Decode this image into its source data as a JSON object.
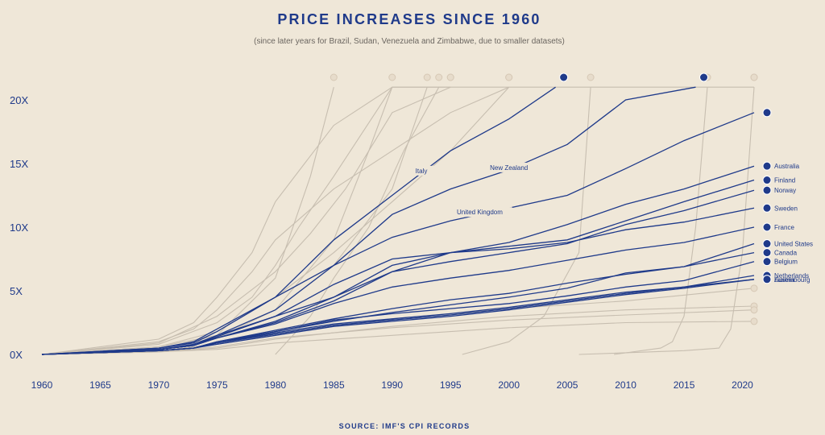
{
  "chart_data": {
    "type": "line",
    "title": "PRICE INCREASES SINCE 1960",
    "subtitle": "(since later years for Brazil, Sudan, Venezuela and Zimbabwe, due to smaller datasets)",
    "source": "SOURCE: IMF'S CPI RECORDS",
    "xlim": [
      1960,
      2021
    ],
    "ylim": [
      0,
      21
    ],
    "x_ticks": [
      "1960",
      "1965",
      "1970",
      "1975",
      "1980",
      "1985",
      "1990",
      "1995",
      "2000",
      "2005",
      "2010",
      "2015",
      "2020"
    ],
    "y_ticks": [
      "0X",
      "5X",
      "10X",
      "15X",
      "20X"
    ],
    "colors": {
      "highlight": "#1f3a8a",
      "faded": "#c7beb0",
      "background": "#efe7d8",
      "text": "#1f3a8a"
    },
    "inline_labels": [
      "Italy",
      "New Zealand",
      "United Kingdom"
    ],
    "series": [
      {
        "name": "United Kingdom",
        "highlight": true,
        "x": [
          1960,
          1970,
          1973,
          1975,
          1980,
          1985,
          1990,
          1995,
          2000,
          2005,
          2010,
          2015,
          2021
        ],
        "y": [
          0,
          0.5,
          1.0,
          2.0,
          4.5,
          7.0,
          9.2,
          10.5,
          11.5,
          12.5,
          14.6,
          16.8,
          19.0
        ]
      },
      {
        "name": "Italy",
        "highlight": true,
        "x": [
          1960,
          1970,
          1973,
          1975,
          1980,
          1985,
          1990,
          1995,
          2000,
          2004
        ],
        "y": [
          0,
          0.5,
          0.9,
          1.8,
          4.5,
          9.0,
          12.5,
          16.0,
          18.5,
          21.0
        ]
      },
      {
        "name": "New Zealand",
        "highlight": true,
        "x": [
          1960,
          1970,
          1973,
          1975,
          1980,
          1985,
          1990,
          1995,
          2000,
          2005,
          2010,
          2016
        ],
        "y": [
          0,
          0.4,
          0.8,
          1.5,
          3.5,
          7.0,
          11.0,
          13.0,
          14.5,
          16.5,
          20.0,
          21.0
        ]
      },
      {
        "name": "Australia",
        "highlight": true,
        "x": [
          1960,
          1970,
          1973,
          1975,
          1980,
          1985,
          1990,
          1995,
          2000,
          2005,
          2010,
          2015,
          2021
        ],
        "y": [
          0,
          0.4,
          0.7,
          1.4,
          3.0,
          4.5,
          7.0,
          8.0,
          8.8,
          10.2,
          11.8,
          13.0,
          14.8
        ]
      },
      {
        "name": "Finland",
        "highlight": true,
        "x": [
          1960,
          1970,
          1973,
          1975,
          1980,
          1985,
          1990,
          1995,
          2000,
          2005,
          2010,
          2015,
          2021
        ],
        "y": [
          0,
          0.4,
          0.7,
          1.5,
          3.0,
          5.5,
          7.5,
          8.0,
          8.5,
          9.0,
          10.5,
          12.0,
          13.7
        ]
      },
      {
        "name": "Norway",
        "highlight": true,
        "x": [
          1960,
          1970,
          1973,
          1975,
          1980,
          1985,
          1990,
          1995,
          2000,
          2005,
          2010,
          2015,
          2021
        ],
        "y": [
          0,
          0.4,
          0.7,
          1.3,
          2.6,
          4.5,
          6.5,
          7.3,
          8.0,
          8.7,
          10.2,
          11.3,
          12.9
        ]
      },
      {
        "name": "Sweden",
        "highlight": true,
        "x": [
          1960,
          1970,
          1973,
          1975,
          1980,
          1985,
          1990,
          1995,
          2000,
          2005,
          2010,
          2015,
          2021
        ],
        "y": [
          0,
          0.4,
          0.7,
          1.3,
          2.5,
          4.2,
          6.5,
          8.0,
          8.3,
          8.8,
          9.8,
          10.4,
          11.5
        ]
      },
      {
        "name": "France",
        "highlight": true,
        "x": [
          1960,
          1970,
          1973,
          1975,
          1980,
          1985,
          1990,
          1995,
          2000,
          2005,
          2010,
          2015,
          2021
        ],
        "y": [
          0,
          0.4,
          0.7,
          1.3,
          2.4,
          4.0,
          5.3,
          6.0,
          6.6,
          7.4,
          8.2,
          8.8,
          10.0
        ]
      },
      {
        "name": "United States",
        "highlight": true,
        "x": [
          1960,
          1970,
          1973,
          1975,
          1980,
          1985,
          1990,
          1995,
          2000,
          2005,
          2010,
          2015,
          2021
        ],
        "y": [
          0,
          0.3,
          0.5,
          0.9,
          1.8,
          2.6,
          3.3,
          3.9,
          4.5,
          5.2,
          6.4,
          6.9,
          8.7
        ]
      },
      {
        "name": "Canada",
        "highlight": true,
        "x": [
          1960,
          1970,
          1973,
          1975,
          1980,
          1985,
          1990,
          1995,
          2000,
          2005,
          2010,
          2015,
          2021
        ],
        "y": [
          0,
          0.3,
          0.5,
          1.0,
          1.9,
          2.8,
          3.6,
          4.3,
          4.8,
          5.6,
          6.3,
          6.9,
          8.0
        ]
      },
      {
        "name": "Belgium",
        "highlight": true,
        "x": [
          1960,
          1970,
          1973,
          1975,
          1980,
          1985,
          1990,
          1995,
          2000,
          2005,
          2010,
          2015,
          2021
        ],
        "y": [
          0,
          0.3,
          0.5,
          1.0,
          1.8,
          2.7,
          3.2,
          3.6,
          4.0,
          4.6,
          5.3,
          5.8,
          7.3
        ]
      },
      {
        "name": "Netherlands",
        "highlight": true,
        "x": [
          1960,
          1970,
          1973,
          1975,
          1980,
          1985,
          1990,
          1995,
          2000,
          2005,
          2010,
          2015,
          2021
        ],
        "y": [
          0,
          0.3,
          0.5,
          0.9,
          1.7,
          2.4,
          2.8,
          3.2,
          3.7,
          4.3,
          4.9,
          5.3,
          6.2
        ]
      },
      {
        "name": "Luxembourg",
        "highlight": true,
        "x": [
          1960,
          1970,
          1973,
          1975,
          1980,
          1985,
          1990,
          1995,
          2000,
          2005,
          2010,
          2015,
          2021
        ],
        "y": [
          0,
          0.3,
          0.5,
          0.9,
          1.6,
          2.3,
          2.7,
          3.1,
          3.6,
          4.2,
          4.8,
          5.3,
          5.9
        ]
      },
      {
        "name": "Austria",
        "highlight": true,
        "x": [
          1960,
          1970,
          1973,
          1975,
          1980,
          1985,
          1990,
          1995,
          2000,
          2005,
          2010,
          2015,
          2021
        ],
        "y": [
          0,
          0.3,
          0.5,
          0.8,
          1.5,
          2.2,
          2.6,
          3.0,
          3.5,
          4.1,
          4.7,
          5.2,
          5.9
        ]
      },
      {
        "highlight": false,
        "x": [
          1960,
          1970,
          1973,
          1975,
          1978,
          1980,
          1985,
          1990,
          1995,
          2000,
          2005,
          2010,
          2015,
          2021
        ],
        "y": [
          0,
          1.0,
          2.0,
          3.5,
          6.5,
          9.0,
          13.0,
          16.0,
          19.0,
          21.0,
          21.0,
          21.0,
          21.0,
          21.0
        ]
      },
      {
        "highlight": false,
        "x": [
          1960,
          1970,
          1973,
          1975,
          1978,
          1980,
          1985,
          1990,
          1995,
          2000
        ],
        "y": [
          0,
          1.2,
          2.5,
          4.5,
          8.0,
          12.0,
          18.0,
          21.0,
          21.0,
          21.0
        ]
      },
      {
        "highlight": false,
        "x": [
          1960,
          1970,
          1975,
          1978,
          1980,
          1982,
          1985,
          1990,
          1995
        ],
        "y": [
          0,
          0.8,
          2.5,
          4.5,
          7.0,
          10.0,
          14.0,
          21.0,
          21.0
        ]
      },
      {
        "highlight": false,
        "x": [
          1960,
          1970,
          1975,
          1980,
          1983,
          1986,
          1990,
          1995
        ],
        "y": [
          0,
          0.9,
          3.0,
          6.5,
          9.5,
          13.0,
          19.0,
          21.0
        ]
      },
      {
        "highlight": false,
        "x": [
          1960,
          1970,
          1975,
          1980,
          1985,
          1990,
          1995,
          2000
        ],
        "y": [
          0,
          0.6,
          1.8,
          4.5,
          8.0,
          12.0,
          16.0,
          21.0
        ]
      },
      {
        "highlight": false,
        "x": [
          1960,
          1970,
          1975,
          1980,
          1985,
          1988,
          1990
        ],
        "y": [
          0,
          0.6,
          1.5,
          3.5,
          9.0,
          16.0,
          21.0
        ]
      },
      {
        "highlight": false,
        "x": [
          1960,
          1970,
          1975,
          1980,
          1985,
          1990,
          1993
        ],
        "y": [
          0,
          0.5,
          1.3,
          3.5,
          7.0,
          13.0,
          21.0
        ]
      },
      {
        "highlight": false,
        "x": [
          1960,
          1970,
          1975,
          1980,
          1983,
          1985
        ],
        "y": [
          0,
          0.4,
          1.5,
          6.0,
          14.0,
          21.0
        ]
      },
      {
        "highlight": false,
        "x": [
          1980,
          1983,
          1985,
          1988,
          1991,
          1994
        ],
        "y": [
          0,
          3.0,
          6.0,
          10.0,
          16.0,
          21.0
        ]
      },
      {
        "highlight": false,
        "x": [
          1996,
          2000,
          2003,
          2006,
          2007
        ],
        "y": [
          0,
          1.0,
          3.0,
          8.0,
          21.0
        ]
      },
      {
        "highlight": false,
        "x": [
          2009,
          2013,
          2014,
          2015,
          2016,
          2017
        ],
        "y": [
          0,
          0.5,
          1.0,
          3.0,
          10.0,
          21.0
        ]
      },
      {
        "highlight": false,
        "x": [
          2006,
          2015,
          2018,
          2019,
          2020,
          2021
        ],
        "y": [
          0,
          0.3,
          0.5,
          2.0,
          8.0,
          21.0
        ]
      },
      {
        "highlight": false,
        "x": [
          1960,
          1970,
          1975,
          1980,
          1990,
          2000,
          2010,
          2021
        ],
        "y": [
          0,
          0.3,
          0.8,
          1.6,
          2.8,
          3.6,
          4.2,
          5.2
        ]
      },
      {
        "highlight": false,
        "x": [
          1960,
          1970,
          1975,
          1980,
          1990,
          2000,
          2010,
          2021
        ],
        "y": [
          0,
          0.2,
          0.5,
          1.2,
          2.2,
          3.0,
          3.5,
          3.8
        ]
      },
      {
        "highlight": false,
        "x": [
          1960,
          1970,
          1975,
          1980,
          1990,
          2000,
          2010,
          2021
        ],
        "y": [
          0,
          0.2,
          0.6,
          1.3,
          2.1,
          2.7,
          3.1,
          3.5
        ]
      },
      {
        "highlight": false,
        "x": [
          1960,
          1970,
          1975,
          1980,
          1990,
          2000,
          2010,
          2021
        ],
        "y": [
          0,
          0.2,
          0.4,
          0.9,
          1.5,
          2.1,
          2.5,
          2.6
        ]
      }
    ]
  }
}
